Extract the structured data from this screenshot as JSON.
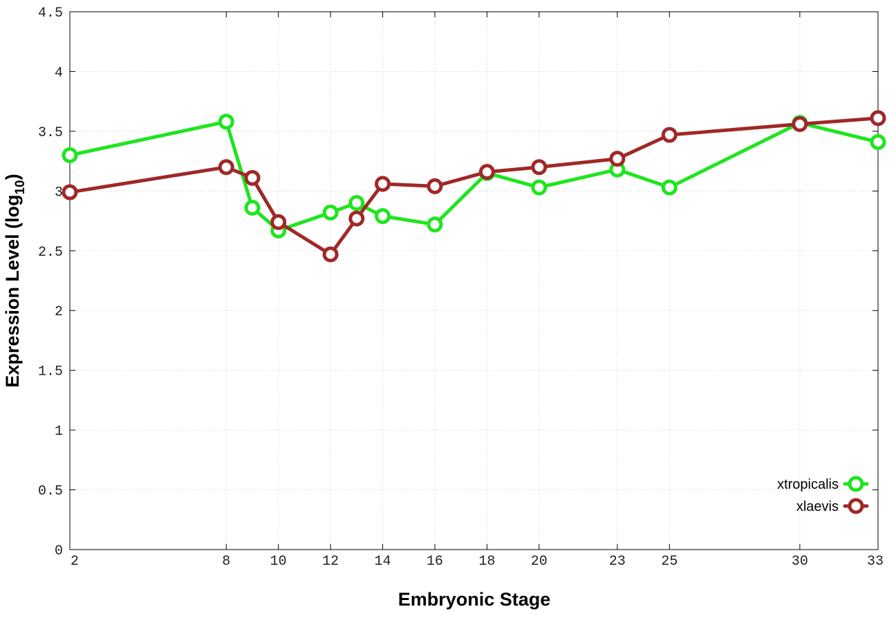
{
  "chart_data": {
    "type": "line",
    "title": "",
    "xlabel": "Embryonic Stage",
    "ylabel_main": "Expression Level (log",
    "ylabel_sub": "10",
    "ylabel_close": ")",
    "xlim": [
      2,
      33
    ],
    "ylim": [
      0,
      4.5
    ],
    "x_ticks": [
      2,
      8,
      10,
      12,
      14,
      16,
      18,
      20,
      23,
      25,
      30,
      33
    ],
    "x_tick_labels": [
      "2",
      "8",
      "10",
      "12",
      "14",
      "16",
      "18",
      "20",
      "23",
      "25",
      "30",
      "33"
    ],
    "y_ticks": [
      0,
      0.5,
      1,
      1.5,
      2,
      2.5,
      3,
      3.5,
      4,
      4.5
    ],
    "y_tick_labels": [
      "0",
      "0.5",
      "1",
      "1.5",
      "2",
      "2.5",
      "3",
      "3.5",
      "4",
      "4.5"
    ],
    "grid": true,
    "legend_position": "bottom-right",
    "series": [
      {
        "name": "xtropicalis",
        "color": "#1ee51e",
        "x": [
          2,
          8,
          9,
          10,
          12,
          13,
          14,
          16,
          18,
          20,
          23,
          25,
          30,
          33
        ],
        "y": [
          3.3,
          3.58,
          2.86,
          2.67,
          2.82,
          2.9,
          2.79,
          2.72,
          3.15,
          3.03,
          3.18,
          3.03,
          3.57,
          3.41
        ]
      },
      {
        "name": "xlaevis",
        "color": "#a02828",
        "x": [
          2,
          8,
          9,
          10,
          12,
          13,
          14,
          16,
          18,
          20,
          23,
          25,
          30,
          33
        ],
        "y": [
          2.99,
          3.2,
          3.11,
          2.74,
          2.47,
          2.77,
          3.06,
          3.04,
          3.16,
          3.2,
          3.27,
          3.47,
          3.56,
          3.61
        ]
      }
    ]
  }
}
